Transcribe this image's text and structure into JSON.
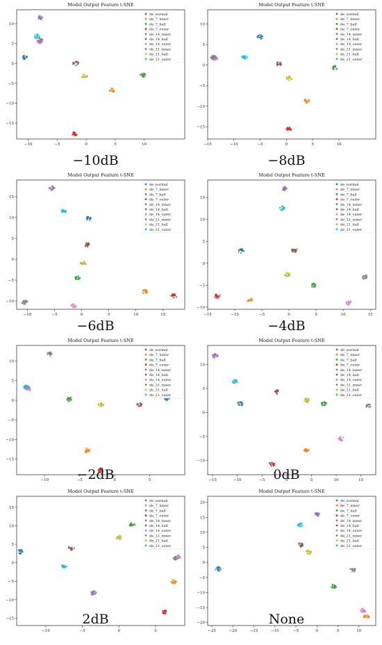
{
  "legend_labels": [
    "de_normal",
    "de_7_inner",
    "de_7_ball",
    "de_7_outer",
    "de_14_inner",
    "de_14_ball",
    "de_14_outer",
    "de_21_inner",
    "de_21_ball",
    "de_21_outer"
  ],
  "palette": [
    "#1f77b4",
    "#ff7f0e",
    "#2ca02c",
    "#d62728",
    "#9467bd",
    "#8c564b",
    "#e377c2",
    "#7f7f7f",
    "#bcbd22",
    "#17becf"
  ],
  "chart_data": [
    {
      "type": "scatter",
      "title": "Model Output Feature t-SNE",
      "caption": "−10dB",
      "xticks": [
        -10,
        -5,
        0,
        5,
        10
      ],
      "yticks": [
        -15,
        -10,
        -5,
        0,
        5,
        10
      ],
      "xlim": [
        -12,
        17
      ],
      "ylim": [
        -19,
        13.5
      ],
      "clusters": [
        {
          "x": -10.5,
          "y": 1.5,
          "class": 0
        },
        {
          "x": 4.5,
          "y": -6.8,
          "class": 1
        },
        {
          "x": 9.8,
          "y": -3.0,
          "class": 2
        },
        {
          "x": -2.0,
          "y": -17.7,
          "class": 3
        },
        {
          "x": -8.0,
          "y": 11.5,
          "class": 4
        },
        {
          "x": -1.8,
          "y": 0.0,
          "class": 5
        },
        {
          "x": -8.0,
          "y": 5.5,
          "class": 6
        },
        {
          "x": -7.9,
          "y": 5.8,
          "class": 7
        },
        {
          "x": -0.3,
          "y": -3.3,
          "class": 8
        },
        {
          "x": -8.5,
          "y": 6.8,
          "class": 9
        }
      ]
    },
    {
      "type": "scatter",
      "title": "Model Output Feature t-SNE",
      "caption": "−8dB",
      "xticks": [
        -15,
        -10,
        -5,
        0,
        5,
        10
      ],
      "yticks": [
        -15,
        -10,
        -5,
        0,
        5,
        10
      ],
      "xlim": [
        -15,
        17
      ],
      "ylim": [
        -18,
        13.5
      ],
      "clusters": [
        {
          "x": -5.0,
          "y": 6.8,
          "class": 0
        },
        {
          "x": 3.8,
          "y": -8.7,
          "class": 1
        },
        {
          "x": 9.2,
          "y": -0.6,
          "class": 2
        },
        {
          "x": 0.5,
          "y": -15.5,
          "class": 3
        },
        {
          "x": -13.8,
          "y": 1.8,
          "class": 4
        },
        {
          "x": -1.5,
          "y": 0.3,
          "class": 5
        },
        {
          "x": -13.6,
          "y": 1.6,
          "class": 6
        },
        {
          "x": -13.9,
          "y": 1.9,
          "class": 7
        },
        {
          "x": 0.5,
          "y": -3.2,
          "class": 8
        },
        {
          "x": -8.0,
          "y": 2.0,
          "class": 9
        }
      ]
    },
    {
      "type": "scatter",
      "title": "Model Output Feature t-SNE",
      "caption": "−6dB",
      "xticks": [
        -10,
        -5,
        0,
        5,
        10,
        15
      ],
      "yticks": [
        -10,
        -5,
        0,
        5,
        10,
        15
      ],
      "xlim": [
        -12,
        19
      ],
      "ylim": [
        -12,
        19
      ],
      "clusters": [
        {
          "x": 1.3,
          "y": 9.8,
          "class": 0
        },
        {
          "x": 11.7,
          "y": -7.8,
          "class": 1
        },
        {
          "x": -0.8,
          "y": -4.5,
          "class": 2
        },
        {
          "x": 17.0,
          "y": -8.8,
          "class": 3
        },
        {
          "x": -5.5,
          "y": 17.0,
          "class": 4
        },
        {
          "x": 1.0,
          "y": 3.5,
          "class": 5
        },
        {
          "x": -1.5,
          "y": -11.2,
          "class": 6
        },
        {
          "x": -10.5,
          "y": -10.3,
          "class": 7
        },
        {
          "x": 0.3,
          "y": -1.0,
          "class": 8
        },
        {
          "x": -3.3,
          "y": 11.5,
          "class": 9
        }
      ]
    },
    {
      "type": "scatter",
      "title": "Model Output Feature t-SNE",
      "caption": "−4dB",
      "xticks": [
        -15,
        -10,
        -5,
        0,
        5,
        10,
        15
      ],
      "yticks": [
        -10,
        -5,
        0,
        5,
        10,
        15
      ],
      "xlim": [
        -15,
        16
      ],
      "ylim": [
        -10.5,
        19
      ],
      "clusters": [
        {
          "x": -8.8,
          "y": 2.8,
          "class": 0
        },
        {
          "x": -7.2,
          "y": -8.5,
          "class": 1
        },
        {
          "x": 4.5,
          "y": -5.0,
          "class": 2
        },
        {
          "x": -13.2,
          "y": -7.5,
          "class": 3
        },
        {
          "x": -0.8,
          "y": 17.0,
          "class": 4
        },
        {
          "x": 1.0,
          "y": 3.0,
          "class": 5
        },
        {
          "x": 11.0,
          "y": -9.0,
          "class": 6
        },
        {
          "x": 14.0,
          "y": -3.2,
          "class": 7
        },
        {
          "x": -0.3,
          "y": -2.5,
          "class": 8
        },
        {
          "x": -1.3,
          "y": 12.5,
          "class": 9
        }
      ]
    },
    {
      "type": "scatter",
      "title": "Model Output Feature t-SNE",
      "caption": "−2dB",
      "xticks": [
        -10,
        -5,
        0,
        5
      ],
      "yticks": [
        -15,
        -10,
        -5,
        0,
        5,
        10
      ],
      "xlim": [
        -14,
        10
      ],
      "ylim": [
        -19,
        14
      ],
      "clusters": [
        {
          "x": 7.5,
          "y": 0.3,
          "class": 0
        },
        {
          "x": -4.0,
          "y": -12.8,
          "class": 1
        },
        {
          "x": -6.5,
          "y": 0.3,
          "class": 2
        },
        {
          "x": -2.0,
          "y": -17.8,
          "class": 3
        },
        {
          "x": -12.5,
          "y": 3.2,
          "class": 4
        },
        {
          "x": 3.5,
          "y": -1.2,
          "class": 5
        },
        {
          "x": -12.3,
          "y": 3.0,
          "class": 6
        },
        {
          "x": -9.3,
          "y": 11.8,
          "class": 7
        },
        {
          "x": -2.0,
          "y": -1.2,
          "class": 8
        },
        {
          "x": -12.6,
          "y": 3.4,
          "class": 9
        }
      ]
    },
    {
      "type": "scatter",
      "title": "Model Output Feature t-SNE",
      "caption": "0dB",
      "xticks": [
        -15,
        -10,
        -5,
        0,
        5,
        10,
        15
      ],
      "yticks": [
        -15,
        -10,
        -5,
        0,
        5,
        10
      ],
      "xlim": [
        -16,
        18
      ],
      "ylim": [
        -13,
        14
      ],
      "clusters": [
        {
          "x": -9.5,
          "y": 1.8,
          "class": 0
        },
        {
          "x": 4.0,
          "y": -8.0,
          "class": 1
        },
        {
          "x": 7.5,
          "y": 1.8,
          "class": 2
        },
        {
          "x": -3.0,
          "y": -10.8,
          "class": 3
        },
        {
          "x": -14.5,
          "y": 11.8,
          "class": 4
        },
        {
          "x": -2.0,
          "y": 4.3,
          "class": 5
        },
        {
          "x": 11.0,
          "y": -5.5,
          "class": 6
        },
        {
          "x": 16.5,
          "y": 1.3,
          "class": 7
        },
        {
          "x": 4.0,
          "y": 2.5,
          "class": 8
        },
        {
          "x": -10.5,
          "y": 6.5,
          "class": 9
        }
      ]
    },
    {
      "type": "scatter",
      "title": "Model Output Feature t-SNE",
      "caption": "2dB",
      "xticks": [
        -10,
        -5,
        0,
        5
      ],
      "yticks": [
        -15,
        -10,
        -5,
        0,
        5,
        10,
        15
      ],
      "xlim": [
        -14,
        9
      ],
      "ylim": [
        -17,
        18
      ],
      "clusters": [
        {
          "x": -13.5,
          "y": 3.0,
          "class": 0
        },
        {
          "x": 7.5,
          "y": -5.2,
          "class": 1
        },
        {
          "x": 1.8,
          "y": 10.2,
          "class": 2
        },
        {
          "x": 6.3,
          "y": -13.3,
          "class": 3
        },
        {
          "x": -3.5,
          "y": -8.2,
          "class": 4
        },
        {
          "x": -6.5,
          "y": 4.0,
          "class": 5
        },
        {
          "x": 8.0,
          "y": 1.5,
          "class": 6
        },
        {
          "x": 7.8,
          "y": 1.3,
          "class": 7
        },
        {
          "x": 0.0,
          "y": 6.8,
          "class": 8
        },
        {
          "x": -7.5,
          "y": -1.0,
          "class": 9
        }
      ]
    },
    {
      "type": "scatter",
      "title": "Model Output Feature t-SNE",
      "caption": "None",
      "xticks": [
        -25,
        -20,
        -15,
        -10,
        -5,
        0,
        5,
        10
      ],
      "yticks": [
        -20,
        -15,
        -10,
        -5,
        0,
        5,
        10,
        15,
        20
      ],
      "xlim": [
        -26,
        14
      ],
      "ylim": [
        -21,
        22
      ],
      "clusters": [
        {
          "x": -23.5,
          "y": -2.2,
          "class": 0
        },
        {
          "x": 11.8,
          "y": -18.0,
          "class": 1
        },
        {
          "x": 4.0,
          "y": -8.0,
          "class": 2
        },
        {
          "x": 5.5,
          "y": 19.0,
          "class": 3
        },
        {
          "x": 0.0,
          "y": 16.0,
          "class": 4
        },
        {
          "x": -4.0,
          "y": 5.8,
          "class": 5
        },
        {
          "x": 11.0,
          "y": -16.0,
          "class": 6
        },
        {
          "x": 8.5,
          "y": -2.5,
          "class": 7
        },
        {
          "x": -2.0,
          "y": 3.5,
          "class": 8
        },
        {
          "x": -4.0,
          "y": 12.5,
          "class": 9
        }
      ]
    }
  ]
}
